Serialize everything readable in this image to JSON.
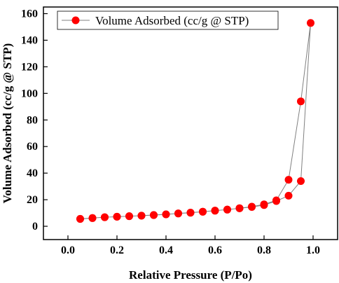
{
  "chart_data": {
    "type": "scatter",
    "title": "",
    "xlabel": "Relative Pressure (P/Po)",
    "ylabel": "Volume Adsorbed (cc/g @ STP)",
    "xlim": [
      -0.1,
      1.1
    ],
    "ylim": [
      -10,
      165
    ],
    "xticks": [
      0.0,
      0.2,
      0.4,
      0.6,
      0.8,
      1.0
    ],
    "xtick_labels": [
      "0.0",
      "0.2",
      "0.4",
      "0.6",
      "0.8",
      "1.0"
    ],
    "yticks": [
      0,
      20,
      40,
      60,
      80,
      100,
      120,
      140,
      160
    ],
    "ytick_labels": [
      "0",
      "20",
      "40",
      "60",
      "80",
      "100",
      "120",
      "140",
      "160"
    ],
    "legend": {
      "placement": "top-left",
      "marker_color": "#ff0000",
      "line_color": "#808080"
    },
    "grid": false,
    "series": [
      {
        "name": "Volume Adsorbed (cc/g @ STP)",
        "color": "#ff0000",
        "line_color": "#808080",
        "x": [
          0.05,
          0.1,
          0.15,
          0.2,
          0.25,
          0.3,
          0.35,
          0.4,
          0.45,
          0.5,
          0.55,
          0.6,
          0.65,
          0.7,
          0.75,
          0.8,
          0.85,
          0.9,
          0.95,
          0.99,
          0.95,
          0.9,
          0.85,
          0.8,
          0.75,
          0.7,
          0.65,
          0.6,
          0.55,
          0.5,
          0.45,
          0.4,
          0.35,
          0.3,
          0.25,
          0.2,
          0.15,
          0.1,
          0.05
        ],
        "y": [
          5.5,
          6.2,
          6.8,
          7.2,
          7.6,
          8.0,
          8.5,
          9.0,
          9.6,
          10.2,
          10.9,
          11.7,
          12.6,
          13.5,
          14.5,
          16.0,
          19.0,
          23.0,
          34.0,
          153.0,
          94.0,
          35.0,
          19.5,
          16.5,
          14.8,
          13.6,
          12.5,
          11.8,
          11.0,
          10.3,
          9.7,
          9.0,
          8.4,
          8.0,
          7.6,
          7.2,
          6.8,
          6.2,
          5.6
        ]
      }
    ]
  }
}
